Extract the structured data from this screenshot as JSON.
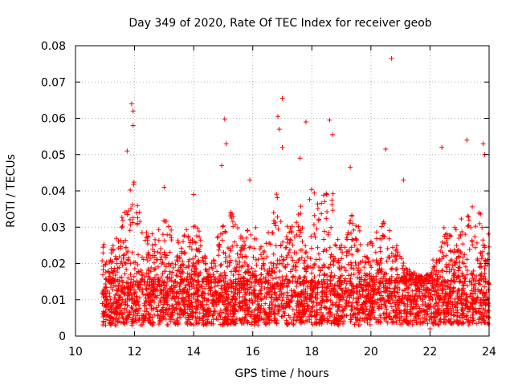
{
  "chart_data": {
    "type": "scatter",
    "title": "Day 349 of 2020, Rate Of TEC Index for receiver geob",
    "xlabel": "GPS time / hours",
    "ylabel": "ROTI / TECUs",
    "xlim": [
      10,
      24
    ],
    "ylim": [
      0,
      0.08
    ],
    "x_ticks": [
      10,
      12,
      14,
      16,
      18,
      20,
      22,
      24
    ],
    "y_ticks": [
      0,
      0.01,
      0.02,
      0.03,
      0.04,
      0.05,
      0.06,
      0.07,
      0.08
    ],
    "x_tick_labels": [
      "10",
      "12",
      "14",
      "16",
      "18",
      "20",
      "22",
      "24"
    ],
    "y_tick_labels": [
      "0",
      "0.01",
      "0.02",
      "0.03",
      "0.04",
      "0.05",
      "0.06",
      "0.07",
      "0.08"
    ],
    "grid": true,
    "marker": "+",
    "color": "#ff0000",
    "data_range_x": [
      10.9,
      24.0
    ],
    "baseline_band": [
      0.003,
      0.015
    ],
    "notable_points": [
      {
        "x": 20.7,
        "y": 0.0765
      },
      {
        "x": 17.0,
        "y": 0.0655
      },
      {
        "x": 11.9,
        "y": 0.064
      },
      {
        "x": 11.95,
        "y": 0.062
      },
      {
        "x": 16.85,
        "y": 0.0605
      },
      {
        "x": 15.05,
        "y": 0.0598
      },
      {
        "x": 18.6,
        "y": 0.0595
      },
      {
        "x": 17.8,
        "y": 0.059
      },
      {
        "x": 11.95,
        "y": 0.058
      },
      {
        "x": 16.9,
        "y": 0.057
      },
      {
        "x": 18.7,
        "y": 0.0555
      },
      {
        "x": 23.25,
        "y": 0.054
      },
      {
        "x": 15.1,
        "y": 0.053
      },
      {
        "x": 23.8,
        "y": 0.053
      },
      {
        "x": 17.0,
        "y": 0.052
      },
      {
        "x": 22.4,
        "y": 0.052
      },
      {
        "x": 20.5,
        "y": 0.0515
      },
      {
        "x": 11.75,
        "y": 0.051
      },
      {
        "x": 23.85,
        "y": 0.05
      },
      {
        "x": 17.6,
        "y": 0.049
      },
      {
        "x": 14.95,
        "y": 0.047
      },
      {
        "x": 19.3,
        "y": 0.0465
      },
      {
        "x": 21.1,
        "y": 0.043
      },
      {
        "x": 15.9,
        "y": 0.043
      },
      {
        "x": 13.0,
        "y": 0.041
      },
      {
        "x": 14.0,
        "y": 0.039
      },
      {
        "x": 22.1,
        "y": 0.021
      },
      {
        "x": 22.0,
        "y": 0.002
      }
    ],
    "density_profile": [
      {
        "x": 11.0,
        "upper": 0.02
      },
      {
        "x": 11.4,
        "upper": 0.028
      },
      {
        "x": 11.7,
        "upper": 0.038
      },
      {
        "x": 12.0,
        "upper": 0.045
      },
      {
        "x": 12.3,
        "upper": 0.03
      },
      {
        "x": 12.7,
        "upper": 0.028
      },
      {
        "x": 13.0,
        "upper": 0.034
      },
      {
        "x": 13.4,
        "upper": 0.026
      },
      {
        "x": 13.8,
        "upper": 0.03
      },
      {
        "x": 14.1,
        "upper": 0.032
      },
      {
        "x": 14.5,
        "upper": 0.018
      },
      {
        "x": 14.9,
        "upper": 0.03
      },
      {
        "x": 15.2,
        "upper": 0.036
      },
      {
        "x": 15.6,
        "upper": 0.028
      },
      {
        "x": 16.0,
        "upper": 0.033
      },
      {
        "x": 16.4,
        "upper": 0.024
      },
      {
        "x": 16.8,
        "upper": 0.04
      },
      {
        "x": 17.1,
        "upper": 0.03
      },
      {
        "x": 17.5,
        "upper": 0.035
      },
      {
        "x": 17.9,
        "upper": 0.04
      },
      {
        "x": 18.3,
        "upper": 0.044
      },
      {
        "x": 18.7,
        "upper": 0.04
      },
      {
        "x": 19.0,
        "upper": 0.026
      },
      {
        "x": 19.4,
        "upper": 0.036
      },
      {
        "x": 19.8,
        "upper": 0.024
      },
      {
        "x": 20.2,
        "upper": 0.03
      },
      {
        "x": 20.6,
        "upper": 0.034
      },
      {
        "x": 21.0,
        "upper": 0.022
      },
      {
        "x": 21.4,
        "upper": 0.018
      },
      {
        "x": 21.8,
        "upper": 0.016
      },
      {
        "x": 22.2,
        "upper": 0.02
      },
      {
        "x": 22.5,
        "upper": 0.032
      },
      {
        "x": 22.9,
        "upper": 0.03
      },
      {
        "x": 23.3,
        "upper": 0.038
      },
      {
        "x": 23.7,
        "upper": 0.034
      },
      {
        "x": 24.0,
        "upper": 0.028
      }
    ]
  }
}
